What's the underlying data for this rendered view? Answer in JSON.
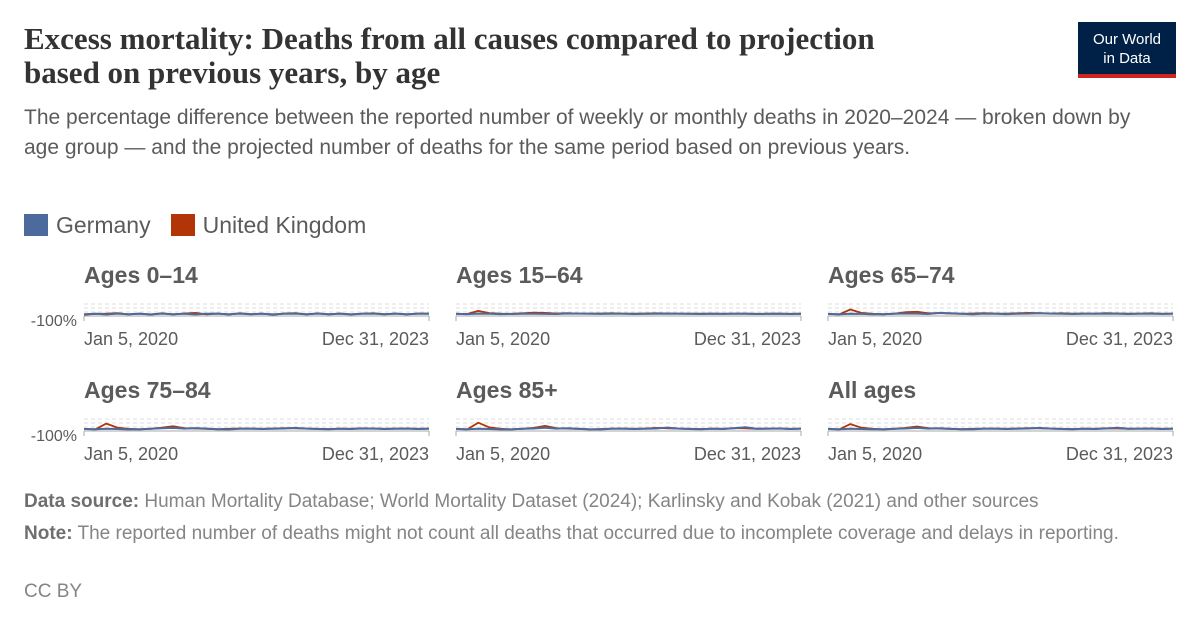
{
  "header": {
    "title_line1": "Excess mortality: Deaths from all causes compared to projection",
    "title_line2": "based on previous years, by age",
    "subtitle": "The percentage difference between the reported number of weekly or monthly deaths in 2020–2024 — broken down by age group — and the projected number of deaths for the same period based on previous years.",
    "logo_line1": "Our World",
    "logo_line2": "in Data"
  },
  "legend": [
    {
      "name": "Germany",
      "color": "#4c6a9c"
    },
    {
      "name": "United Kingdom",
      "color": "#b13507"
    }
  ],
  "footer": {
    "source_label": "Data source:",
    "source_text": " Human Mortality Database; World Mortality Dataset (2024); Karlinsky and Kobak (2021) and other sources",
    "note_label": "Note:",
    "note_text": " The reported number of deaths might not count all deaths that occurred due to incomplete coverage and delays in reporting.",
    "license": "CC BY"
  },
  "chart_data": [
    {
      "type": "line",
      "title": "Ages 0–14",
      "x_range": [
        "Jan 5, 2020",
        "Dec 31, 2023"
      ],
      "y_tick_label": "-100%",
      "series": [
        {
          "name": "Germany",
          "color": "#4c6a9c",
          "values": [
            -2,
            3,
            -4,
            5,
            -3,
            2,
            -5,
            4,
            -2,
            3,
            -4,
            2,
            5,
            -3,
            4,
            -2,
            3,
            -5,
            2,
            4,
            -3,
            5,
            -2,
            3,
            -4,
            2,
            4,
            -3,
            5,
            -2,
            3,
            2
          ]
        },
        {
          "name": "United Kingdom",
          "color": "#b13507",
          "values": [
            -8,
            2,
            5,
            10,
            -5,
            4,
            -6,
            8,
            -4,
            6,
            12,
            -3,
            5,
            -6,
            8,
            -2,
            4,
            -8,
            6,
            10,
            -4,
            7,
            -3,
            6,
            -5,
            4,
            8,
            -2,
            5,
            -4,
            6,
            3
          ]
        }
      ],
      "ylim": [
        -100,
        100
      ]
    },
    {
      "type": "line",
      "title": "Ages 15–64",
      "x_range": [
        "Jan 5, 2020",
        "Dec 31, 2023"
      ],
      "y_tick_label": "",
      "series": [
        {
          "name": "Germany",
          "color": "#4c6a9c",
          "values": [
            1,
            -1,
            4,
            2,
            -1,
            0,
            2,
            3,
            1,
            0,
            6,
            4,
            2,
            1,
            3,
            2,
            0,
            1,
            3,
            5,
            2,
            1,
            0,
            2,
            1,
            3,
            2,
            0,
            1,
            2,
            0,
            1
          ]
        },
        {
          "name": "United Kingdom",
          "color": "#b13507",
          "values": [
            2,
            0,
            35,
            10,
            3,
            2,
            8,
            14,
            12,
            6,
            10,
            5,
            4,
            6,
            8,
            5,
            3,
            6,
            8,
            6,
            4,
            5,
            3,
            4,
            2,
            5,
            3,
            2,
            3,
            4,
            2,
            3
          ]
        }
      ],
      "ylim": [
        -100,
        100
      ]
    },
    {
      "type": "line",
      "title": "Ages 65–74",
      "x_range": [
        "Jan 5, 2020",
        "Dec 31, 2023"
      ],
      "y_tick_label": "",
      "series": [
        {
          "name": "Germany",
          "color": "#4c6a9c",
          "values": [
            0,
            -2,
            3,
            1,
            -3,
            -1,
            2,
            6,
            4,
            0,
            12,
            8,
            2,
            -2,
            4,
            3,
            -1,
            2,
            5,
            8,
            4,
            2,
            0,
            3,
            2,
            5,
            3,
            0,
            2,
            3,
            1,
            2
          ]
        },
        {
          "name": "United Kingdom",
          "color": "#b13507",
          "values": [
            2,
            -4,
            50,
            12,
            2,
            -3,
            4,
            20,
            24,
            8,
            10,
            4,
            2,
            6,
            10,
            6,
            4,
            8,
            12,
            10,
            6,
            8,
            4,
            6,
            3,
            10,
            6,
            3,
            4,
            8,
            2,
            4
          ]
        }
      ],
      "ylim": [
        -100,
        100
      ]
    },
    {
      "type": "line",
      "title": "Ages 75–84",
      "x_range": [
        "Jan 5, 2020",
        "Dec 31, 2023"
      ],
      "y_tick_label": "-100%",
      "series": [
        {
          "name": "Germany",
          "color": "#4c6a9c",
          "values": [
            0,
            -2,
            2,
            0,
            -4,
            -2,
            2,
            8,
            12,
            4,
            10,
            4,
            -2,
            -4,
            2,
            4,
            0,
            2,
            6,
            12,
            4,
            0,
            -2,
            2,
            0,
            6,
            4,
            0,
            2,
            4,
            0,
            2
          ]
        },
        {
          "name": "United Kingdom",
          "color": "#b13507",
          "values": [
            2,
            -4,
            60,
            16,
            2,
            -4,
            2,
            14,
            30,
            10,
            6,
            2,
            -2,
            2,
            6,
            4,
            2,
            6,
            10,
            8,
            4,
            2,
            0,
            4,
            2,
            8,
            6,
            2,
            4,
            6,
            2,
            4
          ]
        }
      ],
      "ylim": [
        -100,
        100
      ]
    },
    {
      "type": "line",
      "title": "Ages 85+",
      "x_range": [
        "Jan 5, 2020",
        "Dec 31, 2023"
      ],
      "y_tick_label": "",
      "series": [
        {
          "name": "Germany",
          "color": "#4c6a9c",
          "values": [
            0,
            -3,
            3,
            0,
            -4,
            -3,
            2,
            6,
            14,
            4,
            8,
            2,
            -3,
            -4,
            2,
            4,
            0,
            2,
            6,
            16,
            4,
            0,
            -2,
            2,
            0,
            8,
            20,
            2,
            2,
            6,
            0,
            2
          ]
        },
        {
          "name": "United Kingdom",
          "color": "#b13507",
          "values": [
            2,
            -4,
            70,
            18,
            2,
            -4,
            2,
            12,
            34,
            10,
            4,
            0,
            -4,
            0,
            4,
            4,
            2,
            6,
            12,
            8,
            4,
            2,
            0,
            4,
            2,
            10,
            8,
            2,
            4,
            6,
            2,
            4
          ]
        }
      ],
      "ylim": [
        -100,
        100
      ]
    },
    {
      "type": "line",
      "title": "All ages",
      "x_range": [
        "Jan 5, 2020",
        "Dec 31, 2023"
      ],
      "y_tick_label": "",
      "series": [
        {
          "name": "Germany",
          "color": "#4c6a9c",
          "values": [
            0,
            -2,
            2,
            0,
            -3,
            -2,
            2,
            6,
            12,
            4,
            8,
            2,
            -2,
            -3,
            2,
            4,
            0,
            2,
            6,
            12,
            4,
            0,
            -2,
            2,
            0,
            6,
            14,
            2,
            2,
            4,
            0,
            2
          ]
        },
        {
          "name": "United Kingdom",
          "color": "#b13507",
          "values": [
            2,
            -4,
            55,
            14,
            2,
            -4,
            2,
            12,
            28,
            10,
            4,
            0,
            -2,
            2,
            4,
            4,
            2,
            6,
            10,
            8,
            4,
            2,
            0,
            4,
            2,
            8,
            6,
            2,
            4,
            6,
            2,
            4
          ]
        }
      ],
      "ylim": [
        -100,
        100
      ]
    }
  ]
}
